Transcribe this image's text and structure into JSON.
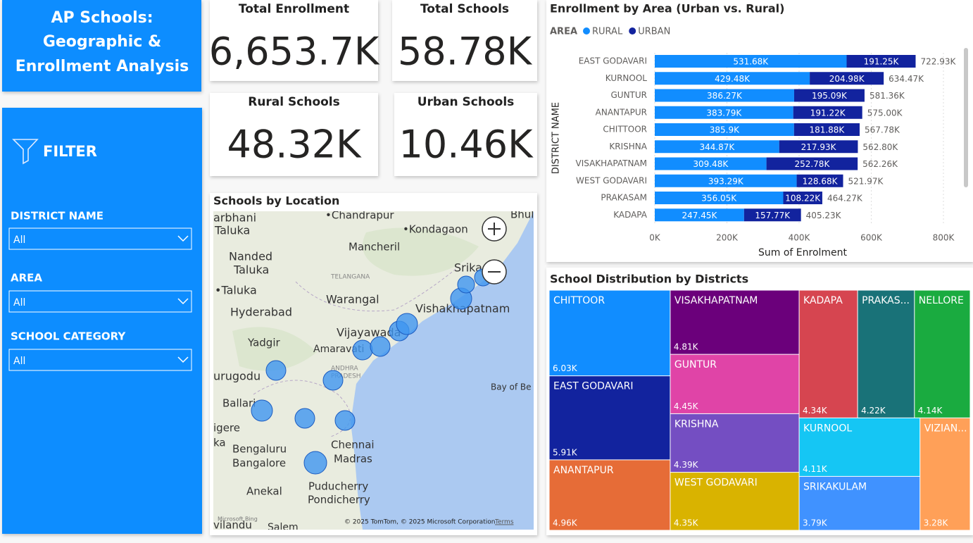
{
  "header": {
    "title_lines": [
      "AP Schools:",
      "Geographic &",
      "Enrollment Analysis"
    ]
  },
  "filter": {
    "title": "FILTER",
    "slicers": [
      {
        "label": "DISTRICT NAME",
        "value": "All"
      },
      {
        "label": "AREA",
        "value": "All"
      },
      {
        "label": "SCHOOL CATEGORY",
        "value": "All"
      }
    ]
  },
  "cards": [
    {
      "title": "Total Enrollment",
      "value": "6,653.7K"
    },
    {
      "title": "Total Schools",
      "value": "58.78K"
    },
    {
      "title": "Rural Schools",
      "value": "48.32K"
    },
    {
      "title": "Urban Schools",
      "value": "10.46K"
    }
  ],
  "map": {
    "title": "Schools by Location",
    "places": [
      "Bhul",
      "arbhani",
      "•Chandrapur",
      "Taluka",
      "•Kondagaon",
      "Mancheril",
      "Nanded",
      "Taluka",
      "Srika",
      "TELANGANA",
      "•Taluka",
      "Warangal",
      "Hyderabad",
      "Vishakhapatnam",
      "Vijayawada",
      "Yadgir",
      "Amaravati",
      "ANDHRA",
      "PRADESH",
      "urugodu",
      "Bay of Be",
      "Ballari",
      "igere",
      "ka",
      "Bengaluru",
      "Chennai",
      "Bangalore",
      "Madras",
      "Anekal",
      "Puducherry",
      "Pondicherry",
      "vilandu",
      "Salem"
    ],
    "attribution": "© 2025 TomTom, © 2025 Microsoft Corporation",
    "terms": "Terms",
    "logo": "Microsoft Bing"
  },
  "chart_data": [
    {
      "type": "bar",
      "orientation": "horizontal",
      "stacked": true,
      "title": "Enrollment by Area (Urban vs. Rural)",
      "legend_title": "AREA",
      "categories": [
        "EAST GODAVARI",
        "KURNOOL",
        "GUNTUR",
        "ANANTAPUR",
        "CHITTOOR",
        "KRISHNA",
        "VISAKHAPATNAM",
        "WEST GODAVARI",
        "PRAKASAM",
        "KADAPA"
      ],
      "series": [
        {
          "name": "RURAL",
          "color": "#118DFF",
          "values": [
            531680,
            429480,
            386270,
            383790,
            385900,
            344870,
            309480,
            393290,
            356050,
            247450
          ],
          "value_labels": [
            "531.68K",
            "429.48K",
            "386.27K",
            "383.79K",
            "385.9K",
            "344.87K",
            "309.48K",
            "393.29K",
            "356.05K",
            "247.45K"
          ]
        },
        {
          "name": "URBAN",
          "color": "#12239E",
          "values": [
            191250,
            204980,
            195090,
            191220,
            181880,
            217930,
            252780,
            128680,
            108220,
            157770
          ],
          "value_labels": [
            "191.25K",
            "204.98K",
            "195.09K",
            "191.22K",
            "181.88K",
            "217.93K",
            "252.78K",
            "128.68K",
            "108.22K",
            "157.77K"
          ]
        }
      ],
      "totals": [
        722930,
        634470,
        581360,
        575000,
        567780,
        562800,
        562260,
        521970,
        464270,
        405230
      ],
      "total_labels": [
        "722.93K",
        "634.47K",
        "581.36K",
        "575.00K",
        "567.78K",
        "562.80K",
        "562.26K",
        "521.97K",
        "464.27K",
        "405.23K"
      ],
      "xlabel": "Sum of Enrolment",
      "ylabel": "DISTRICT NAME",
      "xlim": [
        0,
        800000
      ],
      "xticks": [
        {
          "value": 0,
          "label": "0K"
        },
        {
          "value": 200000,
          "label": "200K"
        },
        {
          "value": 400000,
          "label": "400K"
        },
        {
          "value": 600000,
          "label": "600K"
        },
        {
          "value": 800000,
          "label": "800K"
        }
      ],
      "grid": true
    },
    {
      "type": "treemap",
      "title": "School Distribution by Districts",
      "categories": [
        "CHITTOOR",
        "EAST GODAVARI",
        "ANANTAPUR",
        "VISAKHAPATNAM",
        "GUNTUR",
        "KRISHNA",
        "WEST GODAVARI",
        "KADAPA",
        "PRAKAS...",
        "NELLORE",
        "KURNOOL",
        "SRIKAKULAM",
        "VIZIAN..."
      ],
      "values": [
        6030,
        5910,
        4960,
        4810,
        4450,
        4390,
        4350,
        4340,
        4220,
        4140,
        4110,
        3790,
        3280
      ],
      "value_labels": [
        "6.03K",
        "5.91K",
        "4.96K",
        "4.81K",
        "4.45K",
        "4.39K",
        "4.35K",
        "4.34K",
        "4.22K",
        "4.14K",
        "4.11K",
        "3.79K",
        "3.28K"
      ],
      "colors": [
        "#118DFF",
        "#12239E",
        "#E66C37",
        "#6B007B",
        "#E044A7",
        "#744EC2",
        "#D9B300",
        "#D64550",
        "#197278",
        "#1AAB40",
        "#15C6F4",
        "#4092FF",
        "#FFA058"
      ]
    }
  ]
}
